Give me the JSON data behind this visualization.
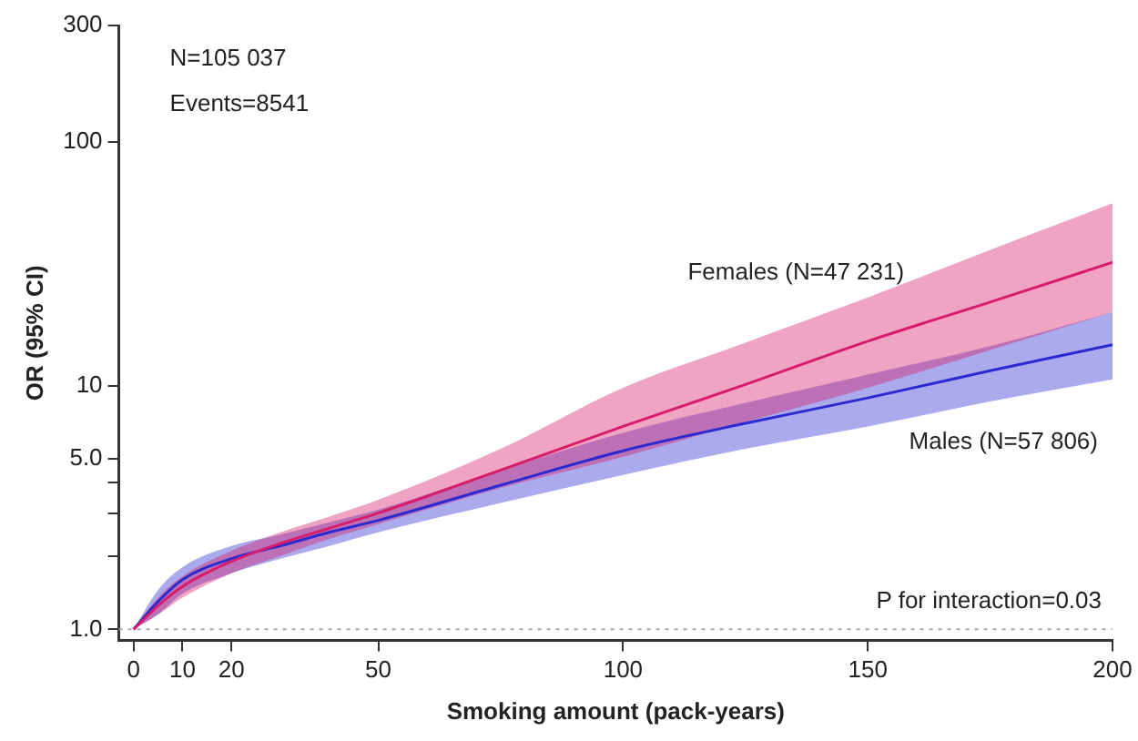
{
  "chart_data": {
    "type": "line",
    "xlabel": "Smoking amount (pack-years)",
    "ylabel": "OR (95% CI)",
    "x": [
      0,
      5,
      10,
      20,
      30,
      40,
      50,
      75,
      100,
      125,
      150,
      175,
      200
    ],
    "series": [
      {
        "name": "Females (N=47 231)",
        "color": "#d81b6a",
        "values": [
          1,
          1.25,
          1.5,
          1.9,
          2.25,
          2.6,
          3.0,
          4.5,
          6.8,
          10.1,
          15.2,
          22,
          32
        ],
        "lower": [
          1,
          1.15,
          1.35,
          1.7,
          2.0,
          2.35,
          2.7,
          3.8,
          5.1,
          7.1,
          9.8,
          14,
          20
        ],
        "upper": [
          1,
          1.35,
          1.65,
          2.1,
          2.5,
          2.9,
          3.4,
          5.5,
          9.8,
          15,
          23,
          36,
          56
        ]
      },
      {
        "name": "Males (N=57 806)",
        "color": "#2a2ad0",
        "values": [
          1,
          1.3,
          1.6,
          1.95,
          2.2,
          2.5,
          2.8,
          3.9,
          5.4,
          7.0,
          8.9,
          11.5,
          14.7
        ],
        "lower": [
          1,
          1.15,
          1.4,
          1.7,
          1.95,
          2.2,
          2.5,
          3.3,
          4.3,
          5.5,
          6.8,
          8.6,
          10.6
        ],
        "upper": [
          1,
          1.45,
          1.8,
          2.2,
          2.45,
          2.75,
          3.1,
          4.5,
          6.4,
          8.5,
          11.1,
          14.5,
          20
        ]
      }
    ],
    "log": "y",
    "xlim": [
      -3,
      200
    ],
    "xticks": [
      0,
      10,
      20,
      50,
      100,
      150,
      200
    ],
    "ylim": [
      0.9,
      300
    ],
    "yticks": [
      {
        "value": 1,
        "label": "1.0"
      },
      {
        "value": 2,
        "label": null
      },
      {
        "value": 3,
        "label": null
      },
      {
        "value": 4,
        "label": null
      },
      {
        "value": 5,
        "label": "5.0"
      },
      10,
      100,
      300
    ],
    "grid": false,
    "legend": false,
    "marker": "none",
    "line_style": "solid",
    "ref_lines": [
      {
        "axis": "y",
        "value": 1,
        "color": "#aaaaaa",
        "line_style": "dotted"
      }
    ],
    "annotations": [
      "N=105 037",
      "Events=8541",
      "P for interaction=0.03"
    ]
  }
}
